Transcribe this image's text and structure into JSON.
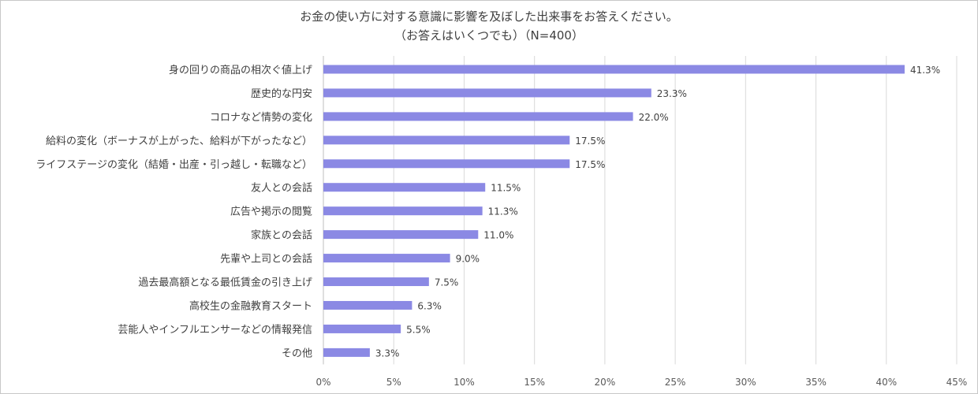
{
  "chart_data": {
    "type": "bar",
    "orientation": "horizontal",
    "title": "お金の使い方に対する意識に影響を及ぼした出来事をお答えください。",
    "subtitle": "（お答えはいくつでも）（N=400）",
    "categories": [
      "身の回りの商品の相次ぐ値上げ",
      "歴史的な円安",
      "コロナなど情勢の変化",
      "給料の変化（ボーナスが上がった、給料が下がったなど）",
      "ライフステージの変化（結婚・出産・引っ越し・転職など）",
      "友人との会話",
      "広告や掲示の閲覧",
      "家族との会話",
      "先輩や上司との会話",
      "過去最高額となる最低賃金の引き上げ",
      "高校生の金融教育スタート",
      "芸能人やインフルエンサーなどの情報発信",
      "その他"
    ],
    "values": [
      41.3,
      23.3,
      22.0,
      17.5,
      17.5,
      11.5,
      11.3,
      11.0,
      9.0,
      7.5,
      6.3,
      5.5,
      3.3
    ],
    "value_labels": [
      "41.3%",
      "23.3%",
      "22.0%",
      "17.5%",
      "17.5%",
      "11.5%",
      "11.3%",
      "11.0%",
      "9.0%",
      "7.5%",
      "6.3%",
      "5.5%",
      "3.3%"
    ],
    "xlim": [
      0,
      45
    ],
    "xticks": [
      0,
      5,
      10,
      15,
      20,
      25,
      30,
      35,
      40,
      45
    ],
    "xtick_labels": [
      "0%",
      "5%",
      "10%",
      "15%",
      "20%",
      "25%",
      "30%",
      "35%",
      "40%",
      "45%"
    ],
    "grid": true,
    "bar_color": "#8b89e4",
    "grid_color": "#d9d9d9"
  }
}
